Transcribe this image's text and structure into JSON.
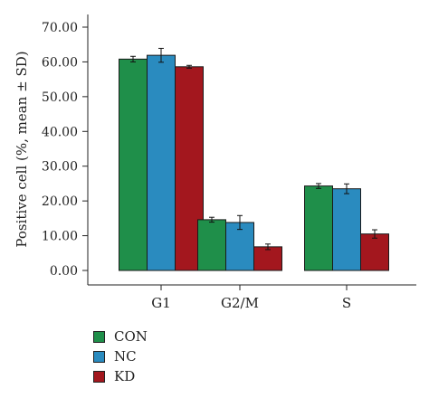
{
  "chart_data": {
    "type": "bar",
    "categories": [
      "G1",
      "G2/M",
      "S"
    ],
    "series": [
      {
        "name": "CON",
        "color": "#1f8f4a",
        "values": [
          60.8,
          14.6,
          24.3
        ],
        "errors": [
          0.8,
          0.7,
          0.7
        ]
      },
      {
        "name": "NC",
        "color": "#2a8bbf",
        "values": [
          61.9,
          13.8,
          23.5
        ],
        "errors": [
          2.0,
          2.0,
          1.4
        ]
      },
      {
        "name": "KD",
        "color": "#a3171e",
        "values": [
          58.6,
          6.8,
          10.5
        ],
        "errors": [
          0.4,
          0.8,
          1.2
        ]
      }
    ],
    "ylabel": "Positive cell (%, mean ± SD)",
    "xlabel": "",
    "ylim": [
      0,
      70
    ],
    "yticks": [
      "0.00",
      "10.00",
      "20.00",
      "30.00",
      "40.00",
      "50.00",
      "60.00",
      "70.00"
    ],
    "legend_position": "bottom-left",
    "grid": false
  }
}
